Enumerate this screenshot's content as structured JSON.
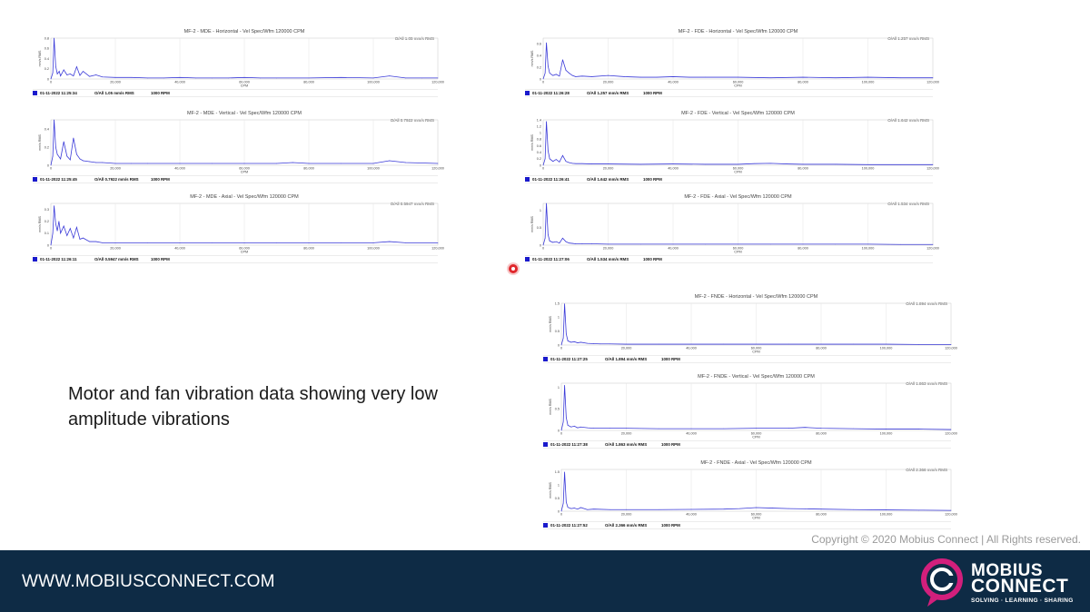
{
  "caption": "Motor and fan vibration data showing very low amplitude vibrations",
  "copyright": "Copyright © 2020 Mobius Connect | All Rights reserved.",
  "footer": {
    "url": "WWW.MOBIUSCONNECT.COM",
    "logo_word1": "MOBIUS",
    "logo_word2": "CONNECT",
    "logo_tagline": "SOLVING · LEARNING · SHARING"
  },
  "colors": {
    "footer_bg": "#0e2b45",
    "series": "#3a3ad8",
    "legend_box": "#1a1acc",
    "logo_accent": "#d21f7c"
  },
  "chart_data": [
    {
      "type": "line",
      "title": "MF-2 - MDE - Horizontal - Vel Spec/Wfm 120000 CPM",
      "overall_label": "O/All 1.05 mm/s RMS",
      "xlabel": "CPM",
      "ylabel": "mm/s RMS",
      "xlim": [
        0,
        120000
      ],
      "ylim": [
        0,
        0.8
      ],
      "xticks": [
        "0",
        "20,000",
        "40,000",
        "60,000",
        "80,000",
        "100,000",
        "120,000"
      ],
      "yticks": [
        "0",
        "0.2",
        "0.4",
        "0.6",
        "0.8"
      ],
      "legend": {
        "date": "01-11-2022 11:25:34",
        "overall": "O/All 1.05 mm/s RMS",
        "speed": "1000 RPM"
      },
      "series": [
        {
          "x": [
            0,
            600,
            1000,
            1500,
            2000,
            2600,
            3000,
            4000,
            5000,
            6000,
            7000,
            8000,
            9000,
            10000,
            12000,
            14000,
            16000,
            20000,
            25000,
            30000,
            35000,
            40000,
            45000,
            50000,
            55000,
            60000,
            65000,
            70000,
            80000,
            90000,
            100000,
            105000,
            110000,
            115000,
            120000
          ],
          "values": [
            0,
            0.12,
            0.8,
            0.25,
            0.1,
            0.15,
            0.06,
            0.18,
            0.08,
            0.1,
            0.06,
            0.24,
            0.07,
            0.15,
            0.05,
            0.08,
            0.04,
            0.03,
            0.03,
            0.02,
            0.02,
            0.03,
            0.02,
            0.02,
            0.02,
            0.03,
            0.02,
            0.02,
            0.02,
            0.03,
            0.02,
            0.06,
            0.02,
            0.02,
            0.02
          ]
        }
      ]
    },
    {
      "type": "line",
      "title": "MF-2 - MDE - Vertical - Vel Spec/Wfm 120000 CPM",
      "overall_label": "O/All 0.7922 mm/s RMS",
      "xlabel": "CPM",
      "ylabel": "mm/s RMS",
      "xlim": [
        0,
        120000
      ],
      "ylim": [
        0,
        0.5
      ],
      "xticks": [
        "0",
        "20,000",
        "40,000",
        "60,000",
        "80,000",
        "100,000",
        "120,000"
      ],
      "yticks": [
        "0",
        "0.2",
        "0.4"
      ],
      "legend": {
        "date": "01-11-2022 11:25:45",
        "overall": "O/All 0.7922 mm/s RMS",
        "speed": "1000 RPM"
      },
      "series": [
        {
          "x": [
            0,
            600,
            1000,
            1500,
            2000,
            3000,
            4000,
            5000,
            6000,
            7000,
            8000,
            9000,
            10000,
            12000,
            14000,
            16000,
            20000,
            25000,
            30000,
            40000,
            50000,
            60000,
            70000,
            75000,
            80000,
            90000,
            100000,
            105000,
            110000,
            120000
          ],
          "values": [
            0,
            0.1,
            0.5,
            0.2,
            0.12,
            0.07,
            0.26,
            0.1,
            0.06,
            0.3,
            0.12,
            0.07,
            0.05,
            0.04,
            0.03,
            0.03,
            0.02,
            0.02,
            0.02,
            0.02,
            0.02,
            0.02,
            0.02,
            0.03,
            0.02,
            0.02,
            0.02,
            0.05,
            0.03,
            0.02
          ]
        }
      ]
    },
    {
      "type": "line",
      "title": "MF-2 - MDE - Axial - Vel Spec/Wfm 120000 CPM",
      "overall_label": "O/All 0.5947 mm/s RMS",
      "xlabel": "CPM",
      "ylabel": "mm/s RMS",
      "xlim": [
        0,
        120000
      ],
      "ylim": [
        0,
        0.35
      ],
      "xticks": [
        "0",
        "20,000",
        "40,000",
        "60,000",
        "80,000",
        "100,000",
        "120,000"
      ],
      "yticks": [
        "0",
        "0.1",
        "0.2",
        "0.3"
      ],
      "legend": {
        "date": "01-11-2022 11:26:11",
        "overall": "O/All 0.5947 mm/s RMS",
        "speed": "1000 RPM"
      },
      "series": [
        {
          "x": [
            0,
            600,
            1000,
            1500,
            2000,
            2500,
            3000,
            4000,
            5000,
            6000,
            7000,
            8000,
            9000,
            10000,
            12000,
            14000,
            16000,
            20000,
            30000,
            40000,
            50000,
            60000,
            70000,
            80000,
            90000,
            100000,
            105000,
            110000,
            120000
          ],
          "values": [
            0,
            0.1,
            0.33,
            0.18,
            0.12,
            0.2,
            0.1,
            0.16,
            0.08,
            0.14,
            0.06,
            0.15,
            0.05,
            0.06,
            0.03,
            0.03,
            0.02,
            0.02,
            0.02,
            0.02,
            0.02,
            0.02,
            0.02,
            0.02,
            0.02,
            0.02,
            0.03,
            0.02,
            0.02
          ]
        }
      ]
    },
    {
      "type": "line",
      "title": "MF-2 - FDE - Horizontal - Vel Spec/Wfm 120000 CPM",
      "overall_label": "O/All 1.257 mm/s RMS",
      "xlabel": "CPM",
      "ylabel": "mm/s RMS",
      "xlim": [
        0,
        120000
      ],
      "ylim": [
        0,
        0.7
      ],
      "xticks": [
        "0",
        "20,000",
        "40,000",
        "60,000",
        "80,000",
        "100,000",
        "120,000"
      ],
      "yticks": [
        "0",
        "0.2",
        "0.4",
        "0.6"
      ],
      "legend": {
        "date": "01-11-2022 11:26:28",
        "overall": "O/All 1.257 mm/s RMS",
        "speed": "1000 RPM"
      },
      "series": [
        {
          "x": [
            0,
            600,
            1000,
            1500,
            2000,
            3000,
            4000,
            5000,
            6000,
            7000,
            8000,
            9000,
            10000,
            12000,
            15000,
            20000,
            25000,
            30000,
            35000,
            40000,
            45000,
            50000,
            60000,
            70000,
            80000,
            90000,
            100000,
            110000,
            120000
          ],
          "values": [
            0,
            0.1,
            0.62,
            0.22,
            0.1,
            0.06,
            0.08,
            0.05,
            0.33,
            0.15,
            0.1,
            0.06,
            0.04,
            0.05,
            0.04,
            0.06,
            0.04,
            0.03,
            0.03,
            0.04,
            0.03,
            0.03,
            0.03,
            0.02,
            0.03,
            0.02,
            0.03,
            0.02,
            0.02
          ]
        }
      ]
    },
    {
      "type": "line",
      "title": "MF-2 - FDE - Vertical - Vel Spec/Wfm 120000 CPM",
      "overall_label": "O/All 1.642 mm/s RMS",
      "xlabel": "CPM",
      "ylabel": "mm/s RMS",
      "xlim": [
        0,
        120000
      ],
      "ylim": [
        0,
        1.4
      ],
      "xticks": [
        "0",
        "20,000",
        "40,000",
        "60,000",
        "80,000",
        "100,000",
        "120,000"
      ],
      "yticks": [
        "0",
        "0.2",
        "0.4",
        "0.6",
        "0.8",
        "1",
        "1.2",
        "1.4"
      ],
      "legend": {
        "date": "01-11-2022 11:26:41",
        "overall": "O/All 1.642 mm/s RMS",
        "speed": "1000 RPM"
      },
      "series": [
        {
          "x": [
            0,
            600,
            1000,
            1500,
            2000,
            3000,
            4000,
            5000,
            6000,
            7000,
            8000,
            9000,
            10000,
            12000,
            15000,
            20000,
            30000,
            40000,
            50000,
            60000,
            65000,
            70000,
            75000,
            80000,
            90000,
            100000,
            110000,
            120000
          ],
          "values": [
            0,
            0.2,
            1.35,
            0.45,
            0.2,
            0.12,
            0.18,
            0.1,
            0.3,
            0.12,
            0.08,
            0.06,
            0.05,
            0.05,
            0.04,
            0.04,
            0.03,
            0.04,
            0.03,
            0.03,
            0.05,
            0.06,
            0.04,
            0.03,
            0.03,
            0.02,
            0.02,
            0.02
          ]
        }
      ]
    },
    {
      "type": "line",
      "title": "MF-2 - FDE - Axial - Vel Spec/Wfm 120000 CPM",
      "overall_label": "O/All 1.534 mm/s RMS",
      "xlabel": "CPM",
      "ylabel": "mm/s RMS",
      "xlim": [
        0,
        120000
      ],
      "ylim": [
        0,
        1.2
      ],
      "xticks": [
        "0",
        "20,000",
        "40,000",
        "60,000",
        "80,000",
        "100,000",
        "120,000"
      ],
      "yticks": [
        "0",
        "0.5",
        "1"
      ],
      "legend": {
        "date": "01-11-2022 11:27:06",
        "overall": "O/All 1.534 mm/s RMS",
        "speed": "1000 RPM"
      },
      "series": [
        {
          "x": [
            0,
            600,
            1000,
            1500,
            2000,
            3000,
            4000,
            5000,
            6000,
            7000,
            8000,
            9000,
            10000,
            12000,
            15000,
            20000,
            30000,
            40000,
            50000,
            60000,
            70000,
            80000,
            90000,
            100000,
            110000,
            120000
          ],
          "values": [
            0,
            0.2,
            1.2,
            0.3,
            0.12,
            0.08,
            0.1,
            0.06,
            0.2,
            0.1,
            0.06,
            0.05,
            0.04,
            0.04,
            0.04,
            0.03,
            0.03,
            0.03,
            0.03,
            0.03,
            0.03,
            0.03,
            0.03,
            0.03,
            0.02,
            0.02
          ]
        }
      ]
    },
    {
      "type": "line",
      "title": "MF-2 - FNDE - Horizontal - Vel Spec/Wfm 120000 CPM",
      "overall_label": "O/All 1.894 mm/s RMS",
      "xlabel": "CPM",
      "ylabel": "mm/s RMS",
      "xlim": [
        0,
        120000
      ],
      "ylim": [
        0,
        1.5
      ],
      "xticks": [
        "0",
        "20,000",
        "40,000",
        "60,000",
        "80,000",
        "100,000",
        "120,000"
      ],
      "yticks": [
        "0",
        "0.5",
        "1",
        "1.5"
      ],
      "legend": {
        "date": "01-11-2022 11:27:25",
        "overall": "O/All 1.894 mm/s RMS",
        "speed": "1000 RPM"
      },
      "series": [
        {
          "x": [
            0,
            600,
            1000,
            1500,
            2000,
            3000,
            4000,
            5000,
            6000,
            8000,
            10000,
            12000,
            15000,
            20000,
            30000,
            40000,
            50000,
            60000,
            70000,
            80000,
            90000,
            100000,
            110000,
            120000
          ],
          "values": [
            0,
            0.25,
            1.48,
            0.4,
            0.15,
            0.1,
            0.12,
            0.08,
            0.1,
            0.06,
            0.05,
            0.04,
            0.04,
            0.03,
            0.03,
            0.03,
            0.03,
            0.03,
            0.03,
            0.03,
            0.03,
            0.03,
            0.02,
            0.02
          ]
        }
      ]
    },
    {
      "type": "line",
      "title": "MF-2 - FNDE - Vertical - Vel Spec/Wfm 120000 CPM",
      "overall_label": "O/All 1.863 mm/s RMS",
      "xlabel": "CPM",
      "ylabel": "mm/s RMS",
      "xlim": [
        0,
        120000
      ],
      "ylim": [
        0,
        1.1
      ],
      "xticks": [
        "0",
        "20,000",
        "40,000",
        "60,000",
        "80,000",
        "100,000",
        "120,000"
      ],
      "yticks": [
        "0",
        "0.5",
        "1"
      ],
      "legend": {
        "date": "01-11-2022 11:27:38",
        "overall": "O/All 1.863 mm/s RMS",
        "speed": "1000 RPM"
      },
      "series": [
        {
          "x": [
            0,
            600,
            1000,
            1500,
            2000,
            3000,
            4000,
            5000,
            6000,
            8000,
            10000,
            15000,
            20000,
            30000,
            40000,
            50000,
            60000,
            70000,
            75000,
            80000,
            90000,
            100000,
            110000,
            120000
          ],
          "values": [
            0,
            0.2,
            1.05,
            0.3,
            0.12,
            0.08,
            0.1,
            0.06,
            0.08,
            0.06,
            0.05,
            0.05,
            0.05,
            0.04,
            0.04,
            0.04,
            0.05,
            0.05,
            0.07,
            0.05,
            0.04,
            0.03,
            0.03,
            0.02
          ]
        }
      ]
    },
    {
      "type": "line",
      "title": "MF-2 - FNDE - Axial - Vel Spec/Wfm 120000 CPM",
      "overall_label": "O/All 2.366 mm/s RMS",
      "xlabel": "CPM",
      "ylabel": "mm/s RMS",
      "xlim": [
        0,
        120000
      ],
      "ylim": [
        0,
        1.6
      ],
      "xticks": [
        "0",
        "20,000",
        "40,000",
        "60,000",
        "80,000",
        "100,000",
        "120,000"
      ],
      "yticks": [
        "0",
        "0.5",
        "1",
        "1.5"
      ],
      "legend": {
        "date": "01-11-2022 11:27:52",
        "overall": "O/All 2.366 mm/s RMS",
        "speed": "1000 RPM"
      },
      "series": [
        {
          "x": [
            0,
            600,
            1000,
            1500,
            2000,
            3000,
            4000,
            5000,
            6000,
            8000,
            10000,
            15000,
            20000,
            30000,
            40000,
            50000,
            55000,
            60000,
            65000,
            70000,
            75000,
            80000,
            90000,
            100000,
            110000,
            120000
          ],
          "values": [
            0,
            0.3,
            1.5,
            0.35,
            0.15,
            0.1,
            0.12,
            0.08,
            0.14,
            0.06,
            0.08,
            0.06,
            0.06,
            0.06,
            0.07,
            0.08,
            0.1,
            0.14,
            0.12,
            0.1,
            0.09,
            0.08,
            0.06,
            0.05,
            0.04,
            0.03
          ]
        }
      ]
    }
  ]
}
